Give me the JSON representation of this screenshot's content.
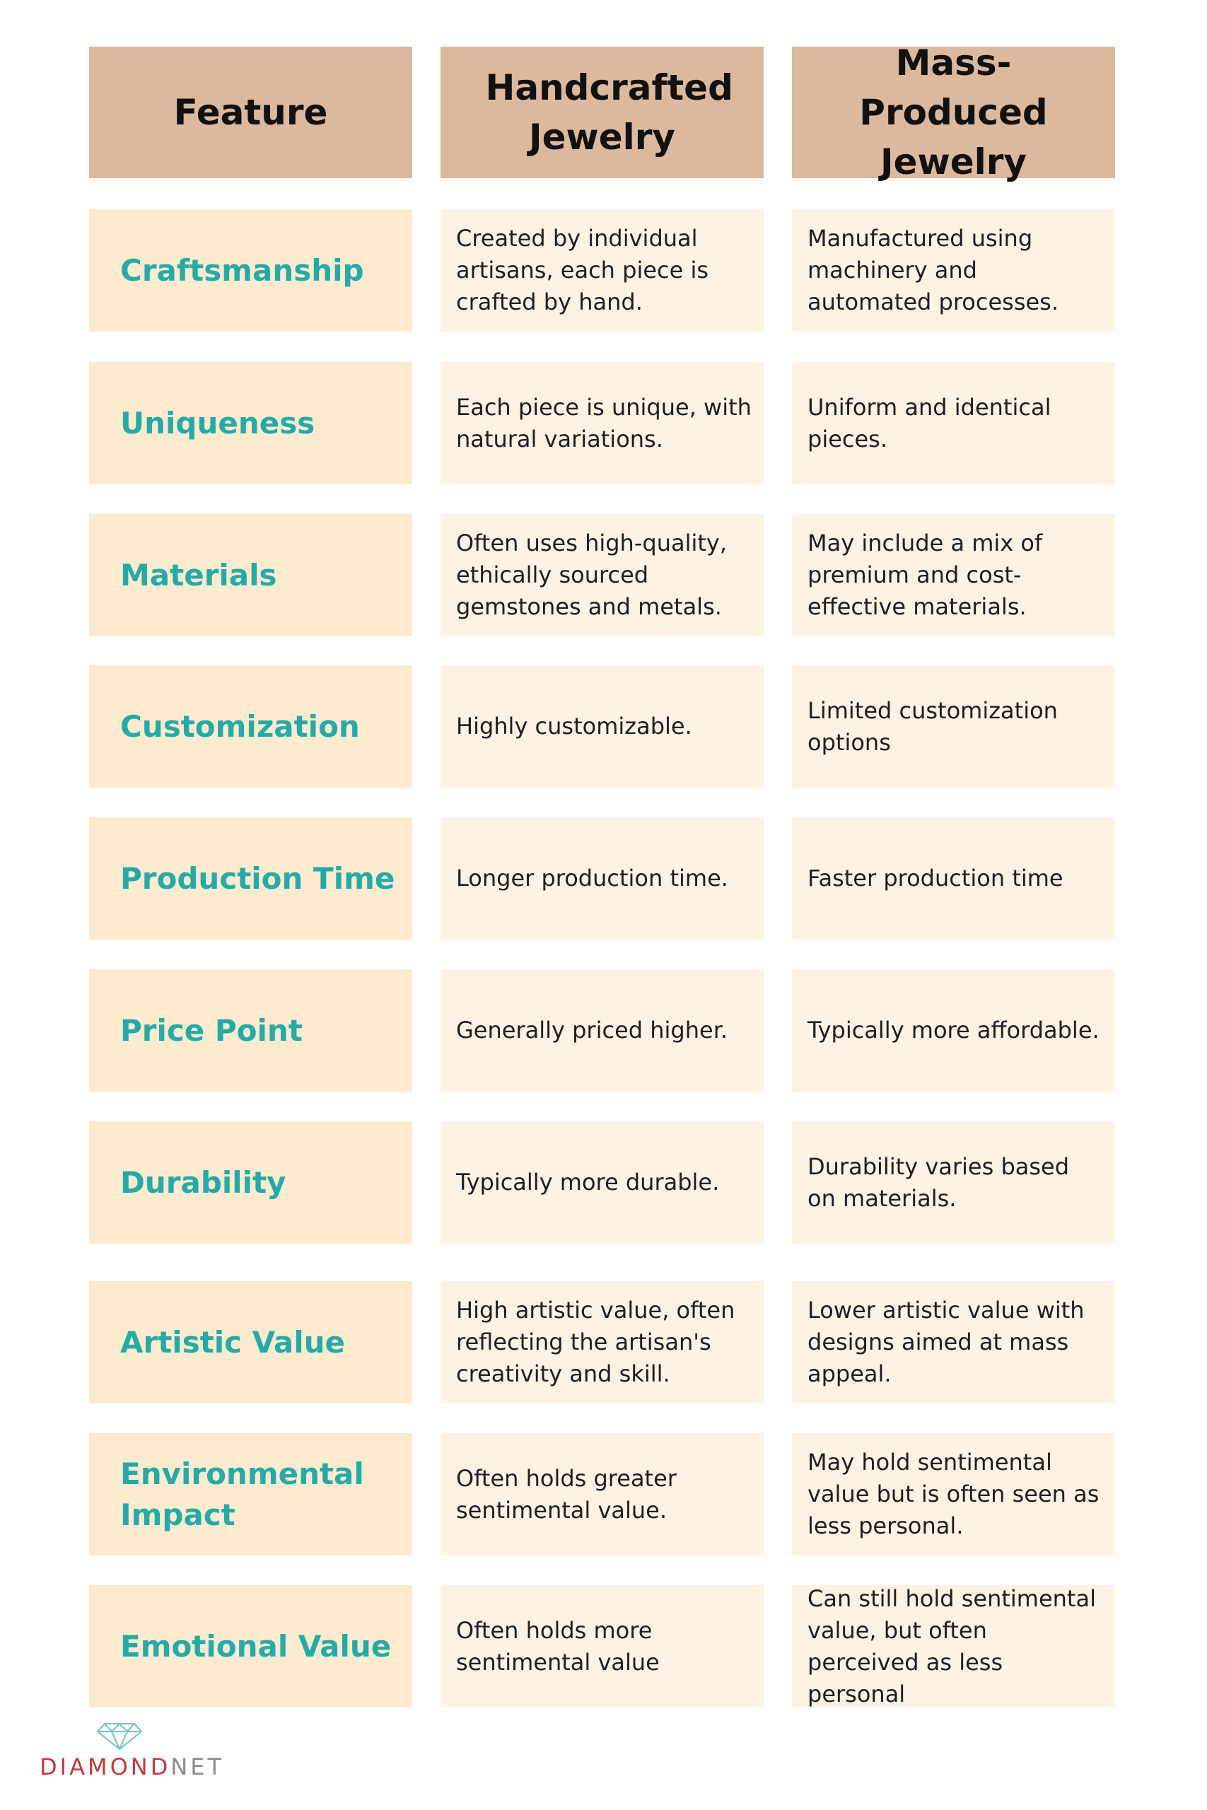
{
  "header": {
    "feature": "Feature",
    "handcrafted": "Handcrafted Jewelry",
    "mass_produced": "Mass-Produced Jewelry"
  },
  "rows": [
    {
      "feature": "Craftsmanship",
      "handcrafted": "Created by individual artisans, each piece is crafted by hand.",
      "mass_produced": "Manufactured using machinery and automated processes."
    },
    {
      "feature": "Uniqueness",
      "handcrafted": "Each piece is unique, with natural variations.",
      "mass_produced": "Uniform and identical pieces."
    },
    {
      "feature": "Materials",
      "handcrafted": "Often uses high-quality, ethically sourced gemstones and metals.",
      "mass_produced": "May include a mix of premium and cost-effective materials."
    },
    {
      "feature": "Customization",
      "handcrafted": "Highly customizable.",
      "mass_produced": "Limited customization options"
    },
    {
      "feature": "Production Time",
      "handcrafted": "Longer production time.",
      "mass_produced": "Faster production time"
    },
    {
      "feature": "Price Point",
      "handcrafted": "Generally priced higher.",
      "mass_produced": "Typically more affordable."
    },
    {
      "feature": "Durability",
      "handcrafted": "Typically more durable.",
      "mass_produced": "Durability varies based on materials."
    },
    {
      "feature": "Artistic Value",
      "handcrafted": "High artistic value, often reflecting the artisan's creativity and skill.",
      "mass_produced": "Lower artistic value with designs aimed at mass appeal."
    },
    {
      "feature": "Environmental Impact",
      "handcrafted": "Often holds greater sentimental value.",
      "mass_produced": "May hold sentimental value but is often seen as less personal."
    },
    {
      "feature": "Emotional Value",
      "handcrafted": "Often holds more sentimental value",
      "mass_produced": "Can still hold sentimental value, but often perceived as less personal"
    }
  ],
  "logo": {
    "text_primary": "DIAMOND",
    "text_secondary": "NET"
  },
  "colors": {
    "header_bg": "#dcb89c",
    "feature_bg": "#fcebcf",
    "desc_bg": "#fdf2e4",
    "feature_text": "#26aaa8",
    "logo_red": "#c0393d",
    "logo_gray": "#8b8b8b"
  }
}
